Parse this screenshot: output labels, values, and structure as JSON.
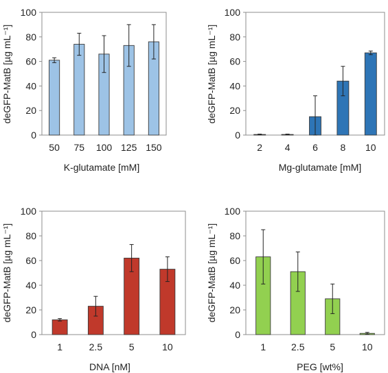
{
  "chart_data": [
    {
      "type": "bar",
      "title": "",
      "categories": [
        "50",
        "75",
        "100",
        "125",
        "150"
      ],
      "values": [
        61,
        74,
        66,
        73,
        76
      ],
      "errors": [
        2,
        9,
        15,
        17,
        14
      ],
      "xlabel": "K-glutamate [mM]",
      "ylabel": "deGFP-MatB [µg mL⁻¹]",
      "ylim": [
        0,
        100
      ],
      "yticks": [
        "0",
        "20",
        "40",
        "60",
        "80",
        "100"
      ],
      "grid": false,
      "color": "#9dc3e6"
    },
    {
      "type": "bar",
      "title": "",
      "categories": [
        "2",
        "4",
        "6",
        "8",
        "10"
      ],
      "values": [
        0.5,
        0.5,
        15,
        44,
        67
      ],
      "errors": [
        0.3,
        0.3,
        17,
        12,
        1.5
      ],
      "xlabel": "Mg-glutamate [mM]",
      "ylabel": "deGFP-MatB [µg mL⁻¹]",
      "ylim": [
        0,
        100
      ],
      "yticks": [
        "0",
        "20",
        "40",
        "60",
        "80",
        "100"
      ],
      "grid": false,
      "color": "#2e75b6"
    },
    {
      "type": "bar",
      "title": "",
      "categories": [
        "1",
        "2.5",
        "5",
        "10"
      ],
      "values": [
        12,
        23,
        62,
        53
      ],
      "errors": [
        1,
        8,
        11,
        10
      ],
      "xlabel": "DNA [nM]",
      "ylabel": "deGFP-MatB [µg mL⁻¹]",
      "ylim": [
        0,
        100
      ],
      "yticks": [
        "0",
        "20",
        "40",
        "60",
        "80",
        "100"
      ],
      "grid": false,
      "color": "#c0392b"
    },
    {
      "type": "bar",
      "title": "",
      "categories": [
        "1",
        "2.5",
        "5",
        "10"
      ],
      "values": [
        63,
        51,
        29,
        1
      ],
      "errors": [
        22,
        16,
        12,
        0.8
      ],
      "xlabel": "PEG [wt%]",
      "ylabel": "deGFP-MatB [µg mL⁻¹]",
      "ylim": [
        0,
        100
      ],
      "yticks": [
        "0",
        "20",
        "40",
        "60",
        "80",
        "100"
      ],
      "grid": false,
      "color": "#92d050"
    }
  ]
}
